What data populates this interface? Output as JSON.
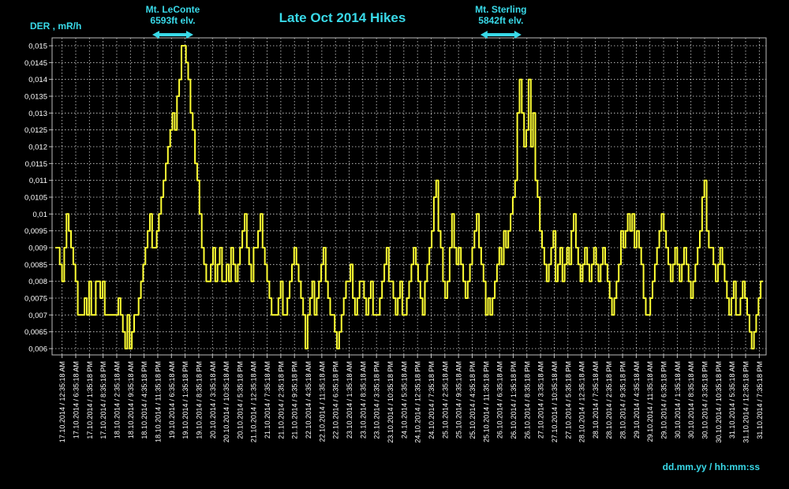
{
  "colors": {
    "background": "#000000",
    "line": "#ffff33",
    "grid": "#d8d8d8",
    "text_accent": "#39d9e8",
    "tick_text": "#ffffff"
  },
  "chart_data": {
    "type": "line",
    "title": "Late Oct 2014 Hikes",
    "ylabel": "DER , mR/h",
    "xlabel": "dd.mm.yy / hh:mm:ss",
    "ylim": [
      0.006,
      0.015
    ],
    "yticks": [
      "0,015",
      "0,0145",
      "0,014",
      "0,0135",
      "0,013",
      "0,0125",
      "0,012",
      "0,0115",
      "0,011",
      "0,0105",
      "0,01",
      "0,0095",
      "0,009",
      "0,0085",
      "0,008",
      "0,0075",
      "0,007",
      "0,0065",
      "0,006"
    ],
    "xticks": [
      "17.10.2014 / 12:35:18 AM",
      "17.10.2014 / 6:35:18 AM",
      "17.10.2014 / 1:35:18 PM",
      "17.10.2014 / 8:35:18 PM",
      "18.10.2014 / 2:35:18 AM",
      "18.10.2014 / 9:35:18 AM",
      "18.10.2014 / 4:35:18 PM",
      "18.10.2014 / 11:35:18 PM",
      "19.10.2014 / 6:35:18 AM",
      "19.10.2014 / 1:35:18 PM",
      "19.10.2014 / 8:35:18 PM",
      "20.10.2014 / 3:35:18 AM",
      "20.10.2014 / 10:35:18 AM",
      "20.10.2014 / 5:35:18 PM",
      "21.10.2014 / 12:35:18 AM",
      "21.10.2014 / 7:35:18 AM",
      "21.10.2014 / 2:35:18 PM",
      "21.10.2014 / 9:35:18 PM",
      "22.10.2014 / 4:35:18 AM",
      "22.10.2014 / 11:35:18 AM",
      "22.10.2014 / 6:35:18 PM",
      "23.10.2014 / 1:35:18 AM",
      "23.10.2014 / 8:35:18 AM",
      "23.10.2014 / 3:35:18 PM",
      "23.10.2014 / 10:35:18 PM",
      "24.10.2014 / 5:35:18 AM",
      "24.10.2014 / 12:35:18 PM",
      "24.10.2014 / 7:35:18 PM",
      "25.10.2014 / 2:35:18 AM",
      "25.10.2014 / 9:35:18 AM",
      "25.10.2014 / 4:35:18 PM",
      "25.10.2014 / 11:35:18 PM",
      "26.10.2014 / 6:35:18 AM",
      "26.10.2014 / 1:35:18 PM",
      "26.10.2014 / 8:35:18 PM",
      "27.10.2014 / 3:35:18 AM",
      "27.10.2014 / 10:35:18 AM",
      "27.10.2014 / 5:35:18 PM",
      "28.10.2014 / 12:35:18 AM",
      "28.10.2014 / 7:35:18 AM",
      "28.10.2014 / 2:35:18 PM",
      "28.10.2014 / 9:35:18 PM",
      "29.10.2014 / 4:35:18 AM",
      "29.10.2014 / 11:35:18 AM",
      "29.10.2014 / 6:35:18 PM",
      "30.10.2014 / 1:35:18 AM",
      "30.10.2014 / 8:35:18 AM",
      "30.10.2014 / 3:35:18 PM",
      "30.10.2014 / 10:35:18 PM",
      "31.10.2014 / 5:35:18 AM",
      "31.10.2014 / 12:35:18 PM",
      "31.10.2014 / 7:35:18 PM"
    ],
    "annotations": [
      {
        "lines": [
          "Mt. LeConte",
          "6593ft elv."
        ],
        "at_tick": 8.6,
        "arrow": "both"
      },
      {
        "lines": [
          "Mt. Sterling",
          "5842ft elv."
        ],
        "at_tick": 32.6,
        "arrow": "both"
      }
    ],
    "grid": true,
    "series": [
      {
        "values": [
          0.009,
          0.009,
          0.0085,
          0.008,
          0.009,
          0.01,
          0.0095,
          0.009,
          0.0085,
          0.008,
          0.007,
          0.007,
          0.007,
          0.0075,
          0.007,
          0.008,
          0.007,
          0.007,
          0.008,
          0.008,
          0.0075,
          0.008,
          0.007,
          0.007,
          0.007,
          0.007,
          0.007,
          0.007,
          0.0075,
          0.007,
          0.0065,
          0.006,
          0.007,
          0.006,
          0.0065,
          0.007,
          0.007,
          0.0075,
          0.008,
          0.0085,
          0.009,
          0.0095,
          0.01,
          0.009,
          0.009,
          0.0095,
          0.01,
          0.0105,
          0.011,
          0.0115,
          0.012,
          0.0125,
          0.013,
          0.0125,
          0.0135,
          0.014,
          0.015,
          0.015,
          0.0145,
          0.014,
          0.013,
          0.0125,
          0.0115,
          0.011,
          0.01,
          0.009,
          0.0085,
          0.008,
          0.008,
          0.0085,
          0.009,
          0.008,
          0.0085,
          0.009,
          0.008,
          0.008,
          0.0085,
          0.008,
          0.009,
          0.0085,
          0.008,
          0.0085,
          0.009,
          0.0095,
          0.01,
          0.009,
          0.0085,
          0.008,
          0.009,
          0.009,
          0.0095,
          0.01,
          0.009,
          0.0085,
          0.008,
          0.0075,
          0.007,
          0.007,
          0.007,
          0.0075,
          0.008,
          0.007,
          0.007,
          0.0075,
          0.008,
          0.0085,
          0.009,
          0.0085,
          0.008,
          0.0075,
          0.007,
          0.006,
          0.007,
          0.0075,
          0.008,
          0.007,
          0.0075,
          0.008,
          0.0085,
          0.009,
          0.008,
          0.0075,
          0.007,
          0.007,
          0.0065,
          0.006,
          0.0065,
          0.007,
          0.0075,
          0.008,
          0.008,
          0.0085,
          0.0075,
          0.007,
          0.0075,
          0.008,
          0.008,
          0.0075,
          0.007,
          0.0075,
          0.008,
          0.007,
          0.007,
          0.007,
          0.0075,
          0.008,
          0.0085,
          0.009,
          0.008,
          0.008,
          0.0075,
          0.007,
          0.0075,
          0.008,
          0.007,
          0.007,
          0.0075,
          0.008,
          0.0085,
          0.009,
          0.0085,
          0.008,
          0.0075,
          0.007,
          0.008,
          0.0085,
          0.009,
          0.0095,
          0.0105,
          0.011,
          0.0095,
          0.009,
          0.008,
          0.0075,
          0.008,
          0.009,
          0.01,
          0.009,
          0.0085,
          0.009,
          0.0085,
          0.008,
          0.0075,
          0.008,
          0.0085,
          0.009,
          0.0095,
          0.01,
          0.009,
          0.0085,
          0.008,
          0.007,
          0.0075,
          0.007,
          0.0075,
          0.008,
          0.0085,
          0.009,
          0.0085,
          0.0095,
          0.009,
          0.0095,
          0.01,
          0.0105,
          0.011,
          0.013,
          0.014,
          0.013,
          0.012,
          0.0125,
          0.014,
          0.012,
          0.013,
          0.011,
          0.0105,
          0.0095,
          0.009,
          0.0085,
          0.008,
          0.0085,
          0.009,
          0.0095,
          0.008,
          0.0085,
          0.009,
          0.008,
          0.0085,
          0.009,
          0.0085,
          0.0095,
          0.01,
          0.009,
          0.0085,
          0.008,
          0.0085,
          0.009,
          0.0085,
          0.008,
          0.0085,
          0.009,
          0.0085,
          0.008,
          0.0085,
          0.009,
          0.0085,
          0.008,
          0.0075,
          0.007,
          0.0075,
          0.008,
          0.0085,
          0.0095,
          0.009,
          0.0095,
          0.01,
          0.0095,
          0.01,
          0.009,
          0.0095,
          0.009,
          0.0085,
          0.0075,
          0.007,
          0.007,
          0.0075,
          0.008,
          0.0085,
          0.009,
          0.0095,
          0.01,
          0.0095,
          0.009,
          0.0085,
          0.008,
          0.0085,
          0.009,
          0.0085,
          0.008,
          0.0085,
          0.009,
          0.0085,
          0.008,
          0.0075,
          0.008,
          0.0085,
          0.009,
          0.0095,
          0.0105,
          0.011,
          0.0095,
          0.009,
          0.009,
          0.0085,
          0.008,
          0.0085,
          0.009,
          0.0085,
          0.008,
          0.0075,
          0.007,
          0.0075,
          0.008,
          0.007,
          0.007,
          0.0075,
          0.008,
          0.0075,
          0.007,
          0.0065,
          0.006,
          0.0065,
          0.007,
          0.0075,
          0.008,
          0.008
        ]
      }
    ]
  }
}
